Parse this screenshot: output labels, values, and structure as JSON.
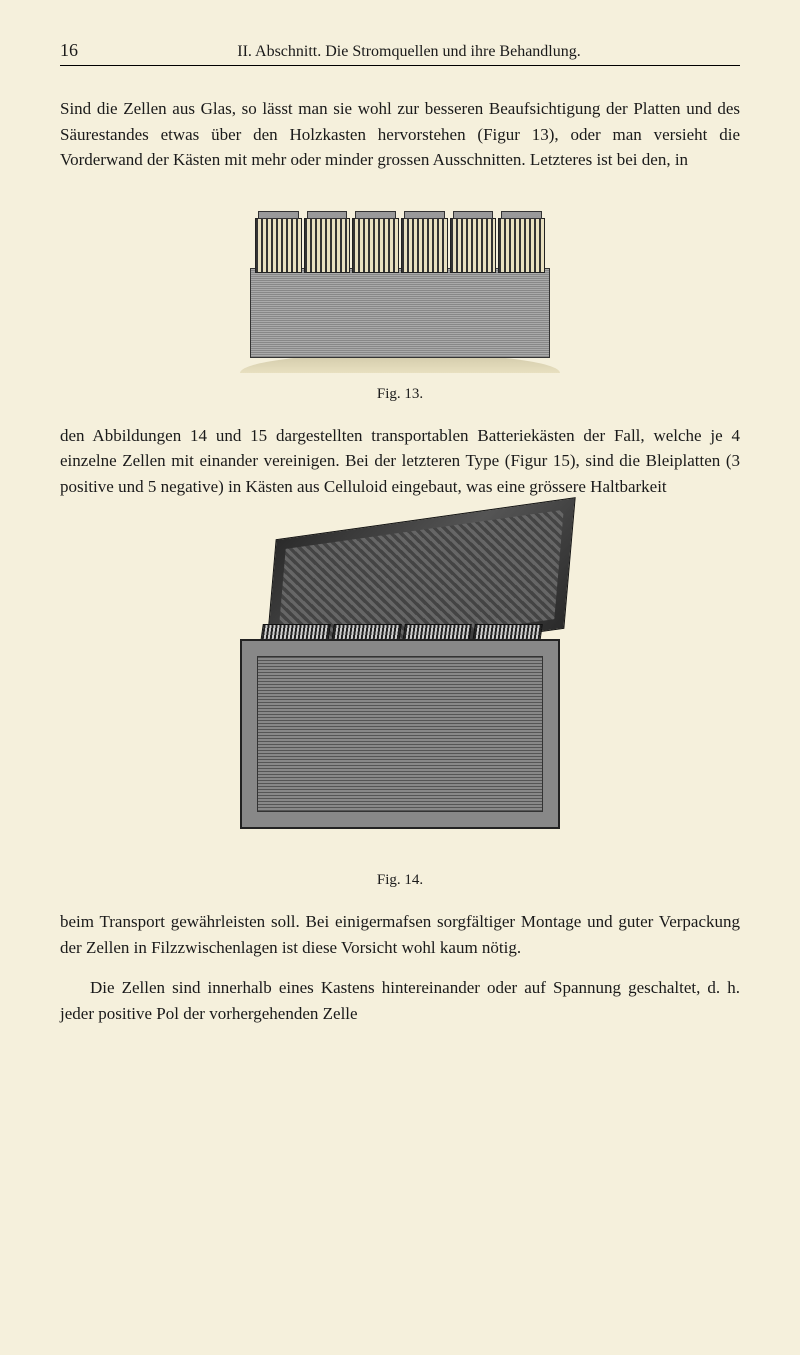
{
  "header": {
    "page_number": "16",
    "section_title": "II. Abschnitt. Die Stromquellen und ihre Behandlung."
  },
  "paragraphs": {
    "p1": "Sind die Zellen aus Glas, so lässt man sie wohl zur besseren Beaufsichtigung der Platten und des Säurestandes etwas über den Holzkasten hervorstehen (Figur 13), oder man versieht die Vorderwand der Kästen mit mehr oder minder grossen Ausschnitten. Letzteres ist bei den, in",
    "p2": "den Abbildungen 14 und 15 dargestellten transportablen Batteriekästen der Fall, welche je 4 einzelne Zellen mit einander vereinigen. Bei der letzteren Type (Figur 15), sind die Bleiplatten (3 positive und 5 negative) in Kästen aus Celluloid eingebaut, was eine grössere Haltbarkeit",
    "p3": "beim Transport gewährleisten soll. Bei einigermafsen sorgfältiger Montage und guter Verpackung der Zellen in Filzzwischenlagen ist diese Vorsicht wohl kaum nötig.",
    "p4": "Die Zellen sind innerhalb eines Kastens hintereinander oder auf Spannung geschaltet, d. h. jeder positive Pol der vorhergehenden Zelle"
  },
  "figures": {
    "fig13_caption": "Fig. 13.",
    "fig14_caption": "Fig. 14."
  },
  "colors": {
    "background": "#f5f0dc",
    "text": "#1a1a1a",
    "border": "#000000"
  }
}
